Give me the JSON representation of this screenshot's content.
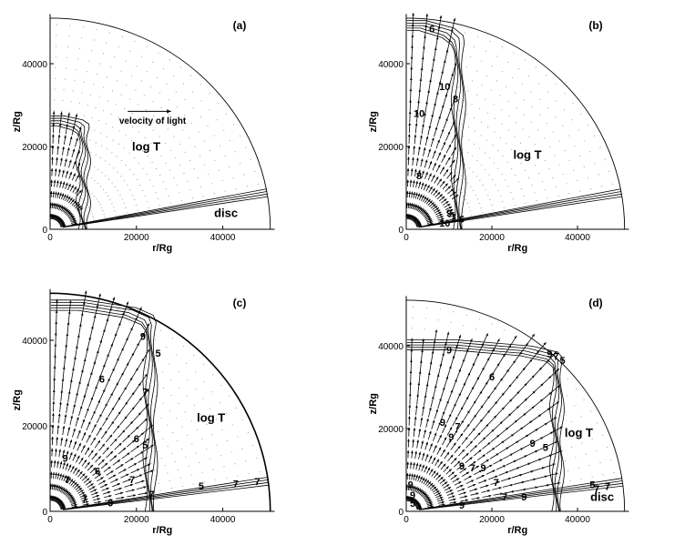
{
  "figure": {
    "colors": {
      "ink": "#000000",
      "grid": "#7a7a7a",
      "background": "#ffffff"
    }
  },
  "chart_data": [
    {
      "type": "contour",
      "panel_label": "(a)",
      "xlabel": "r/Rg",
      "ylabel": "z/Rg",
      "xlim": [
        0,
        52000
      ],
      "ylim": [
        0,
        52000
      ],
      "xticks": [
        0,
        20000,
        40000
      ],
      "yticks": [
        0,
        20000,
        40000
      ],
      "outer_radius": 51000,
      "annotations": [
        {
          "text": "log T",
          "x": 19000,
          "y": 19000
        },
        {
          "text": "disc",
          "x": 38000,
          "y": 3000
        },
        {
          "text": "velocity of light",
          "x": 16000,
          "y": 25500
        }
      ],
      "reference_arrow": {
        "x0": 18000,
        "x1": 28000,
        "y": 28500
      },
      "front_radius": 6500,
      "front_height": 25000,
      "disc_angle_deg": 11,
      "disc_outer": 51000,
      "contour_labels": []
    },
    {
      "type": "contour",
      "panel_label": "(b)",
      "xlabel": "r/Rg",
      "ylabel": "z/Rg",
      "xlim": [
        0,
        52000
      ],
      "ylim": [
        0,
        52000
      ],
      "xticks": [
        0,
        20000,
        40000
      ],
      "yticks": [
        0,
        20000,
        40000
      ],
      "outer_radius": 51000,
      "annotations": [
        {
          "text": "log T",
          "x": 25000,
          "y": 17000
        }
      ],
      "front_radius": 11000,
      "front_height": 48000,
      "disc_angle_deg": 11,
      "disc_outer": 51000,
      "contour_labels": [
        {
          "text": "6",
          "x": 6000,
          "y": 48500
        },
        {
          "text": "10",
          "x": 9000,
          "y": 34500
        },
        {
          "text": "8",
          "x": 11500,
          "y": 31500
        },
        {
          "text": "10",
          "x": 3000,
          "y": 28000
        },
        {
          "text": "8",
          "x": 3000,
          "y": 13000
        },
        {
          "text": "9",
          "x": 10000,
          "y": 4000
        },
        {
          "text": "7",
          "x": 11000,
          "y": 3000
        },
        {
          "text": "6",
          "x": 13000,
          "y": 2500
        },
        {
          "text": "10",
          "x": 9000,
          "y": 1500
        }
      ]
    },
    {
      "type": "contour",
      "panel_label": "(c)",
      "xlabel": "r/Rg",
      "ylabel": "z/Rg",
      "xlim": [
        0,
        52000
      ],
      "ylim": [
        0,
        52000
      ],
      "xticks": [
        0,
        20000,
        40000
      ],
      "yticks": [
        0,
        20000,
        40000
      ],
      "outer_radius": 51000,
      "annotations": [
        {
          "text": "log T",
          "x": 34000,
          "y": 21000
        }
      ],
      "front_radius": 22000,
      "front_height": 47000,
      "disc_angle_deg": 9,
      "disc_outer": 51000,
      "contour_labels": [
        {
          "text": "9",
          "x": 21500,
          "y": 41000
        },
        {
          "text": "5",
          "x": 25000,
          "y": 37000
        },
        {
          "text": "6",
          "x": 12000,
          "y": 31000
        },
        {
          "text": "7",
          "x": 22000,
          "y": 28000
        },
        {
          "text": "6",
          "x": 20000,
          "y": 17000
        },
        {
          "text": "5",
          "x": 22000,
          "y": 15500
        },
        {
          "text": "9",
          "x": 3500,
          "y": 12500
        },
        {
          "text": "7",
          "x": 4000,
          "y": 7500
        },
        {
          "text": "6",
          "x": 11000,
          "y": 9500
        },
        {
          "text": "7",
          "x": 19000,
          "y": 7500
        },
        {
          "text": "7",
          "x": 8000,
          "y": 3000
        },
        {
          "text": "9",
          "x": 14000,
          "y": 2000
        },
        {
          "text": "7",
          "x": 23500,
          "y": 4000
        },
        {
          "text": "5",
          "x": 35000,
          "y": 6000
        },
        {
          "text": "7",
          "x": 43000,
          "y": 6500
        },
        {
          "text": "7",
          "x": 48000,
          "y": 7000
        }
      ]
    },
    {
      "type": "contour",
      "panel_label": "(d)",
      "xlabel": "r/Rg",
      "ylabel": "z/Rg",
      "xlim": [
        0,
        52000
      ],
      "ylim": [
        0,
        52000
      ],
      "xticks": [
        0,
        20000,
        40000
      ],
      "yticks": [
        0,
        20000,
        40000
      ],
      "outer_radius": 51000,
      "annotations": [
        {
          "text": "log T",
          "x": 37000,
          "y": 18000
        },
        {
          "text": "disc",
          "x": 43000,
          "y": 2500
        }
      ],
      "front_radius": 34000,
      "front_height": 39000,
      "disc_angle_deg": 9,
      "disc_outer": 51000,
      "contour_labels": [
        {
          "text": "9",
          "x": 33500,
          "y": 38000
        },
        {
          "text": "7",
          "x": 35000,
          "y": 37500
        },
        {
          "text": "5",
          "x": 36500,
          "y": 36500
        },
        {
          "text": "9",
          "x": 10000,
          "y": 39000
        },
        {
          "text": "6",
          "x": 20000,
          "y": 32500
        },
        {
          "text": "9",
          "x": 8500,
          "y": 21500
        },
        {
          "text": "7",
          "x": 12000,
          "y": 20500
        },
        {
          "text": "9",
          "x": 10500,
          "y": 18000
        },
        {
          "text": "9",
          "x": 13000,
          "y": 11000
        },
        {
          "text": "7",
          "x": 15500,
          "y": 10500
        },
        {
          "text": "9",
          "x": 18000,
          "y": 10500
        },
        {
          "text": "7",
          "x": 21000,
          "y": 7000
        },
        {
          "text": "9",
          "x": 29500,
          "y": 16500
        },
        {
          "text": "5",
          "x": 32500,
          "y": 15500
        },
        {
          "text": "9",
          "x": 1000,
          "y": 6500
        },
        {
          "text": "9",
          "x": 1500,
          "y": 4000
        },
        {
          "text": "5",
          "x": 1500,
          "y": 2000
        },
        {
          "text": "9",
          "x": 13000,
          "y": 1500
        },
        {
          "text": "7",
          "x": 23000,
          "y": 3500
        },
        {
          "text": "9",
          "x": 27500,
          "y": 3500
        },
        {
          "text": "5",
          "x": 43500,
          "y": 6500
        },
        {
          "text": "7",
          "x": 44500,
          "y": 5500
        },
        {
          "text": "7",
          "x": 47000,
          "y": 6000
        }
      ]
    }
  ]
}
